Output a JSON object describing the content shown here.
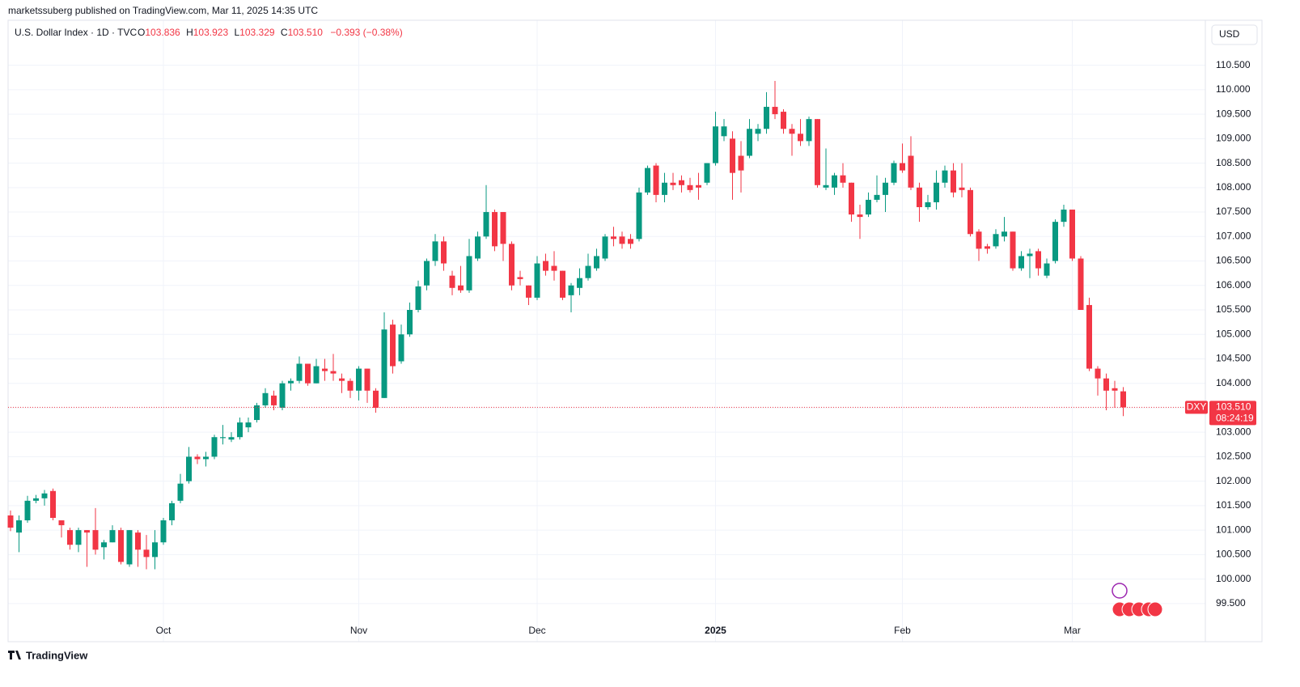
{
  "header": {
    "published": "marketssuberg published on TradingView.com, Mar 11, 2025 14:35 UTC"
  },
  "legend": {
    "symbol": "U.S. Dollar Index · 1D · TVC",
    "o_label": "O",
    "o": "103.836",
    "h_label": "H",
    "h": "103.923",
    "l_label": "L",
    "l": "103.329",
    "c_label": "C",
    "c": "103.510",
    "change": "−0.393 (−0.38%)"
  },
  "currency": "USD",
  "footer": "TradingView",
  "chart_data": {
    "type": "candlestick",
    "up_color": "#089981",
    "down_color": "#f23645",
    "grid": true,
    "ylim": [
      98.72,
      111.42
    ],
    "yticks": [
      {
        "value": 99.5,
        "label": "99.500"
      },
      {
        "value": 100,
        "label": "100.000"
      },
      {
        "value": 100.5,
        "label": "100.500"
      },
      {
        "value": 101,
        "label": "101.000"
      },
      {
        "value": 101.5,
        "label": "101.500"
      },
      {
        "value": 102,
        "label": "102.000"
      },
      {
        "value": 102.5,
        "label": "102.500"
      },
      {
        "value": 103,
        "label": "103.000"
      },
      {
        "value": 103.5,
        "label": "103.500"
      },
      {
        "value": 104,
        "label": "104.000"
      },
      {
        "value": 104.5,
        "label": "104.500"
      },
      {
        "value": 105,
        "label": "105.000"
      },
      {
        "value": 105.5,
        "label": "105.500"
      },
      {
        "value": 106,
        "label": "106.000"
      },
      {
        "value": 106.5,
        "label": "106.500"
      },
      {
        "value": 107,
        "label": "107.000"
      },
      {
        "value": 107.5,
        "label": "107.500"
      },
      {
        "value": 108,
        "label": "108.000"
      },
      {
        "value": 108.5,
        "label": "108.500"
      },
      {
        "value": 109,
        "label": "109.000"
      },
      {
        "value": 109.5,
        "label": "109.500"
      },
      {
        "value": 110,
        "label": "110.000"
      },
      {
        "value": 110.5,
        "label": "110.500"
      }
    ],
    "xticks": [
      {
        "value": 18,
        "label": "Oct"
      },
      {
        "value": 41,
        "label": "Nov"
      },
      {
        "value": 62,
        "label": "Dec"
      },
      {
        "value": 83,
        "label": "2025"
      },
      {
        "value": 105,
        "label": "Feb"
      },
      {
        "value": 125,
        "label": "Mar"
      }
    ],
    "last_price": {
      "symbol": "DXY",
      "label": "103.510",
      "countdown": "08:24:19"
    },
    "candles": [
      {
        "o": 101.3,
        "h": 101.4,
        "l": 100.98,
        "c": 101.05
      },
      {
        "o": 100.95,
        "h": 101.3,
        "l": 100.55,
        "c": 101.2
      },
      {
        "o": 101.2,
        "h": 101.7,
        "l": 101.15,
        "c": 101.6
      },
      {
        "o": 101.6,
        "h": 101.72,
        "l": 101.55,
        "c": 101.65
      },
      {
        "o": 101.65,
        "h": 101.82,
        "l": 101.5,
        "c": 101.75
      },
      {
        "o": 101.8,
        "h": 101.85,
        "l": 101.2,
        "c": 101.25
      },
      {
        "o": 101.2,
        "h": 101.2,
        "l": 100.85,
        "c": 101.1
      },
      {
        "o": 101.0,
        "h": 101.05,
        "l": 100.6,
        "c": 100.7
      },
      {
        "o": 100.7,
        "h": 101.05,
        "l": 100.55,
        "c": 101.0
      },
      {
        "o": 101.0,
        "h": 101.0,
        "l": 100.25,
        "c": 100.95
      },
      {
        "o": 101.0,
        "h": 101.45,
        "l": 100.5,
        "c": 100.6
      },
      {
        "o": 100.65,
        "h": 100.8,
        "l": 100.4,
        "c": 100.75
      },
      {
        "o": 100.75,
        "h": 101.1,
        "l": 100.75,
        "c": 101.0
      },
      {
        "o": 101.0,
        "h": 101.05,
        "l": 100.3,
        "c": 100.35
      },
      {
        "o": 100.3,
        "h": 101.0,
        "l": 100.25,
        "c": 101.0
      },
      {
        "o": 100.95,
        "h": 101.0,
        "l": 100.25,
        "c": 100.6
      },
      {
        "o": 100.6,
        "h": 100.9,
        "l": 100.2,
        "c": 100.45
      },
      {
        "o": 100.45,
        "h": 101.0,
        "l": 100.2,
        "c": 100.75
      },
      {
        "o": 100.75,
        "h": 101.25,
        "l": 100.7,
        "c": 101.2
      },
      {
        "o": 101.2,
        "h": 101.6,
        "l": 101.1,
        "c": 101.55
      },
      {
        "o": 101.6,
        "h": 102.15,
        "l": 101.55,
        "c": 101.95
      },
      {
        "o": 102.0,
        "h": 102.7,
        "l": 101.95,
        "c": 102.5
      },
      {
        "o": 102.5,
        "h": 102.55,
        "l": 102.35,
        "c": 102.45
      },
      {
        "o": 102.45,
        "h": 102.6,
        "l": 102.3,
        "c": 102.5
      },
      {
        "o": 102.5,
        "h": 102.95,
        "l": 102.45,
        "c": 102.9
      },
      {
        "o": 102.88,
        "h": 103.15,
        "l": 102.75,
        "c": 102.9
      },
      {
        "o": 102.85,
        "h": 103.0,
        "l": 102.8,
        "c": 102.9
      },
      {
        "o": 102.9,
        "h": 103.3,
        "l": 102.85,
        "c": 103.2
      },
      {
        "o": 103.1,
        "h": 103.3,
        "l": 103.0,
        "c": 103.2
      },
      {
        "o": 103.25,
        "h": 103.6,
        "l": 103.2,
        "c": 103.55
      },
      {
        "o": 103.55,
        "h": 103.9,
        "l": 103.5,
        "c": 103.8
      },
      {
        "o": 103.75,
        "h": 103.85,
        "l": 103.45,
        "c": 103.55
      },
      {
        "o": 103.5,
        "h": 104.05,
        "l": 103.45,
        "c": 104.0
      },
      {
        "o": 104.0,
        "h": 104.1,
        "l": 103.85,
        "c": 104.05
      },
      {
        "o": 104.05,
        "h": 104.55,
        "l": 104.0,
        "c": 104.4
      },
      {
        "o": 104.4,
        "h": 104.4,
        "l": 103.95,
        "c": 104.0
      },
      {
        "o": 104.0,
        "h": 104.5,
        "l": 104.0,
        "c": 104.35
      },
      {
        "o": 104.3,
        "h": 104.5,
        "l": 104.05,
        "c": 104.25
      },
      {
        "o": 104.25,
        "h": 104.6,
        "l": 104.05,
        "c": 104.2
      },
      {
        "o": 104.1,
        "h": 104.2,
        "l": 103.8,
        "c": 104.05
      },
      {
        "o": 104.05,
        "h": 104.1,
        "l": 103.7,
        "c": 103.85
      },
      {
        "o": 103.85,
        "h": 104.35,
        "l": 103.65,
        "c": 104.3
      },
      {
        "o": 104.3,
        "h": 104.3,
        "l": 103.6,
        "c": 103.85
      },
      {
        "o": 103.85,
        "h": 103.9,
        "l": 103.4,
        "c": 103.5
      },
      {
        "o": 103.7,
        "h": 105.45,
        "l": 103.7,
        "c": 105.1
      },
      {
        "o": 105.2,
        "h": 105.3,
        "l": 104.2,
        "c": 104.35
      },
      {
        "o": 104.45,
        "h": 105.2,
        "l": 104.4,
        "c": 105.0
      },
      {
        "o": 105.0,
        "h": 105.65,
        "l": 104.95,
        "c": 105.5
      },
      {
        "o": 105.5,
        "h": 106.1,
        "l": 105.45,
        "c": 105.98
      },
      {
        "o": 106.0,
        "h": 106.55,
        "l": 105.9,
        "c": 106.5
      },
      {
        "o": 106.5,
        "h": 107.05,
        "l": 106.4,
        "c": 106.9
      },
      {
        "o": 106.9,
        "h": 107.0,
        "l": 106.3,
        "c": 106.45
      },
      {
        "o": 106.2,
        "h": 106.3,
        "l": 105.8,
        "c": 105.95
      },
      {
        "o": 106.0,
        "h": 106.4,
        "l": 105.85,
        "c": 105.9
      },
      {
        "o": 105.9,
        "h": 106.95,
        "l": 105.85,
        "c": 106.6
      },
      {
        "o": 106.55,
        "h": 107.1,
        "l": 106.5,
        "c": 107.0
      },
      {
        "o": 107.0,
        "h": 108.05,
        "l": 106.95,
        "c": 107.5
      },
      {
        "o": 107.5,
        "h": 107.55,
        "l": 106.7,
        "c": 106.8
      },
      {
        "o": 107.5,
        "h": 107.5,
        "l": 106.5,
        "c": 106.85
      },
      {
        "o": 106.85,
        "h": 106.9,
        "l": 105.9,
        "c": 106.0
      },
      {
        "o": 106.17,
        "h": 106.3,
        "l": 106.0,
        "c": 106.13
      },
      {
        "o": 106.0,
        "h": 106.0,
        "l": 105.6,
        "c": 105.75
      },
      {
        "o": 105.75,
        "h": 106.6,
        "l": 105.7,
        "c": 106.45
      },
      {
        "o": 106.5,
        "h": 106.65,
        "l": 106.2,
        "c": 106.3
      },
      {
        "o": 106.4,
        "h": 106.7,
        "l": 106.1,
        "c": 106.3
      },
      {
        "o": 106.3,
        "h": 106.3,
        "l": 105.7,
        "c": 105.75
      },
      {
        "o": 105.8,
        "h": 106.05,
        "l": 105.45,
        "c": 106.0
      },
      {
        "o": 105.95,
        "h": 106.35,
        "l": 105.8,
        "c": 106.15
      },
      {
        "o": 106.15,
        "h": 106.65,
        "l": 106.1,
        "c": 106.4
      },
      {
        "o": 106.35,
        "h": 106.75,
        "l": 106.3,
        "c": 106.6
      },
      {
        "o": 106.55,
        "h": 107.05,
        "l": 106.5,
        "c": 107.0
      },
      {
        "o": 107.0,
        "h": 107.2,
        "l": 106.8,
        "c": 106.95
      },
      {
        "o": 107.0,
        "h": 107.1,
        "l": 106.75,
        "c": 106.85
      },
      {
        "o": 106.95,
        "h": 107.05,
        "l": 106.75,
        "c": 106.85
      },
      {
        "o": 106.95,
        "h": 108.0,
        "l": 106.9,
        "c": 107.9
      },
      {
        "o": 107.9,
        "h": 108.45,
        "l": 107.85,
        "c": 108.4
      },
      {
        "o": 108.45,
        "h": 108.5,
        "l": 107.7,
        "c": 107.85
      },
      {
        "o": 107.85,
        "h": 108.3,
        "l": 107.7,
        "c": 108.1
      },
      {
        "o": 108.1,
        "h": 108.3,
        "l": 107.95,
        "c": 108.05
      },
      {
        "o": 108.15,
        "h": 108.25,
        "l": 107.9,
        "c": 108.05
      },
      {
        "o": 108.05,
        "h": 108.2,
        "l": 107.9,
        "c": 107.95
      },
      {
        "o": 108.05,
        "h": 108.3,
        "l": 107.75,
        "c": 108.0
      },
      {
        "o": 108.1,
        "h": 108.5,
        "l": 108.05,
        "c": 108.5
      },
      {
        "o": 108.5,
        "h": 109.55,
        "l": 108.45,
        "c": 109.25
      },
      {
        "o": 109.05,
        "h": 109.4,
        "l": 108.95,
        "c": 109.25
      },
      {
        "o": 109.0,
        "h": 109.15,
        "l": 107.75,
        "c": 108.3
      },
      {
        "o": 108.65,
        "h": 108.95,
        "l": 107.9,
        "c": 108.35
      },
      {
        "o": 108.65,
        "h": 109.4,
        "l": 108.6,
        "c": 109.2
      },
      {
        "o": 109.1,
        "h": 109.3,
        "l": 108.95,
        "c": 109.2
      },
      {
        "o": 109.2,
        "h": 109.95,
        "l": 109.1,
        "c": 109.65
      },
      {
        "o": 109.65,
        "h": 110.18,
        "l": 109.4,
        "c": 109.5
      },
      {
        "o": 109.55,
        "h": 109.6,
        "l": 109.1,
        "c": 109.2
      },
      {
        "o": 109.2,
        "h": 109.3,
        "l": 108.65,
        "c": 109.1
      },
      {
        "o": 109.1,
        "h": 109.4,
        "l": 108.85,
        "c": 108.95
      },
      {
        "o": 108.95,
        "h": 109.45,
        "l": 108.85,
        "c": 109.4
      },
      {
        "o": 109.4,
        "h": 109.4,
        "l": 108.0,
        "c": 108.05
      },
      {
        "o": 108.0,
        "h": 108.8,
        "l": 107.95,
        "c": 108.05
      },
      {
        "o": 108.0,
        "h": 108.3,
        "l": 107.85,
        "c": 108.25
      },
      {
        "o": 108.25,
        "h": 108.5,
        "l": 108.0,
        "c": 108.1
      },
      {
        "o": 108.1,
        "h": 108.1,
        "l": 107.3,
        "c": 107.45
      },
      {
        "o": 107.45,
        "h": 107.65,
        "l": 106.95,
        "c": 107.4
      },
      {
        "o": 107.45,
        "h": 107.9,
        "l": 107.4,
        "c": 107.75
      },
      {
        "o": 107.75,
        "h": 108.25,
        "l": 107.7,
        "c": 107.85
      },
      {
        "o": 107.85,
        "h": 108.2,
        "l": 107.5,
        "c": 108.1
      },
      {
        "o": 108.1,
        "h": 108.55,
        "l": 108.05,
        "c": 108.5
      },
      {
        "o": 108.5,
        "h": 108.9,
        "l": 108.3,
        "c": 108.35
      },
      {
        "o": 108.65,
        "h": 109.05,
        "l": 107.95,
        "c": 108.0
      },
      {
        "o": 108.0,
        "h": 108.1,
        "l": 107.3,
        "c": 107.6
      },
      {
        "o": 107.6,
        "h": 107.85,
        "l": 107.55,
        "c": 107.7
      },
      {
        "o": 107.7,
        "h": 108.35,
        "l": 107.55,
        "c": 108.1
      },
      {
        "o": 108.1,
        "h": 108.45,
        "l": 108.0,
        "c": 108.35
      },
      {
        "o": 108.35,
        "h": 108.5,
        "l": 107.8,
        "c": 107.9
      },
      {
        "o": 108.0,
        "h": 108.5,
        "l": 107.8,
        "c": 107.95
      },
      {
        "o": 107.95,
        "h": 108.0,
        "l": 107.0,
        "c": 107.05
      },
      {
        "o": 107.1,
        "h": 107.15,
        "l": 106.5,
        "c": 106.75
      },
      {
        "o": 106.8,
        "h": 106.85,
        "l": 106.65,
        "c": 106.75
      },
      {
        "o": 106.8,
        "h": 107.15,
        "l": 106.75,
        "c": 107.05
      },
      {
        "o": 107.0,
        "h": 107.4,
        "l": 106.9,
        "c": 107.1
      },
      {
        "o": 107.1,
        "h": 107.1,
        "l": 106.3,
        "c": 106.35
      },
      {
        "o": 106.35,
        "h": 106.7,
        "l": 106.3,
        "c": 106.6
      },
      {
        "o": 106.6,
        "h": 106.75,
        "l": 106.15,
        "c": 106.65
      },
      {
        "o": 106.7,
        "h": 106.75,
        "l": 106.2,
        "c": 106.35
      },
      {
        "o": 106.2,
        "h": 106.55,
        "l": 106.15,
        "c": 106.45
      },
      {
        "o": 106.5,
        "h": 107.35,
        "l": 106.45,
        "c": 107.3
      },
      {
        "o": 107.3,
        "h": 107.65,
        "l": 107.2,
        "c": 107.55
      },
      {
        "o": 107.55,
        "h": 107.55,
        "l": 106.5,
        "c": 106.55
      },
      {
        "o": 106.55,
        "h": 106.6,
        "l": 105.5,
        "c": 105.5
      },
      {
        "o": 105.6,
        "h": 105.75,
        "l": 104.25,
        "c": 104.3
      },
      {
        "o": 104.3,
        "h": 104.35,
        "l": 103.75,
        "c": 104.1
      },
      {
        "o": 104.1,
        "h": 104.2,
        "l": 103.45,
        "c": 103.85
      },
      {
        "o": 103.9,
        "h": 104.05,
        "l": 103.5,
        "c": 103.85
      },
      {
        "o": 103.836,
        "h": 103.923,
        "l": 103.329,
        "c": 103.51
      }
    ]
  }
}
